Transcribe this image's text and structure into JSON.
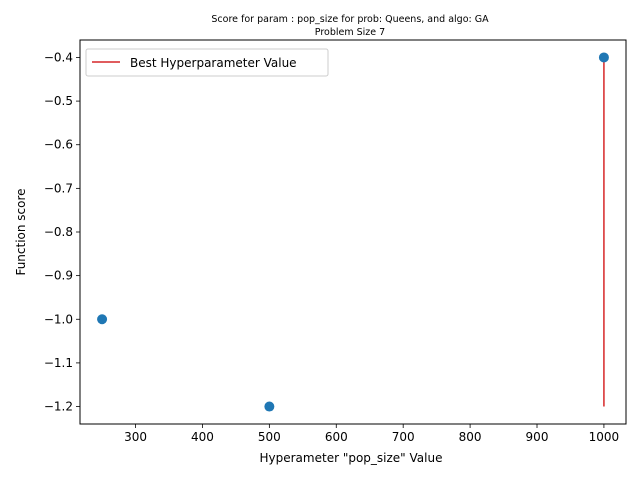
{
  "chart_data": {
    "type": "scatter",
    "title_line1": "Score for param : pop_size for prob: Queens, and algo: GA",
    "title_line2": "Problem Size 7",
    "xlabel": "Hyperameter \"pop_size\" Value",
    "ylabel": "Function score",
    "xlim": [
      217,
      1033
    ],
    "ylim": [
      -1.24,
      -0.36
    ],
    "x_ticks": [
      300,
      400,
      500,
      600,
      700,
      800,
      900,
      1000
    ],
    "y_ticks": [
      -0.4,
      -0.5,
      -0.6,
      -0.7,
      -0.8,
      -0.9,
      -1.0,
      -1.1,
      -1.2
    ],
    "x_tick_labels": [
      "300",
      "400",
      "500",
      "600",
      "700",
      "800",
      "900",
      "1000"
    ],
    "y_tick_labels": [
      "−0.4",
      "−0.5",
      "−0.6",
      "−0.7",
      "−0.8",
      "−0.9",
      "−1.0",
      "−1.1",
      "−1.2"
    ],
    "points": {
      "x": [
        250,
        500,
        1000
      ],
      "y": [
        -1.0,
        -1.2,
        -0.4
      ],
      "color": "#1f77b4"
    },
    "best_line": {
      "name": "Best Hyperparameter Value",
      "x": 1000,
      "y_from": -1.2,
      "y_to": -0.4,
      "color": "#d62728"
    },
    "legend_position": "upper-left",
    "grid": false
  }
}
